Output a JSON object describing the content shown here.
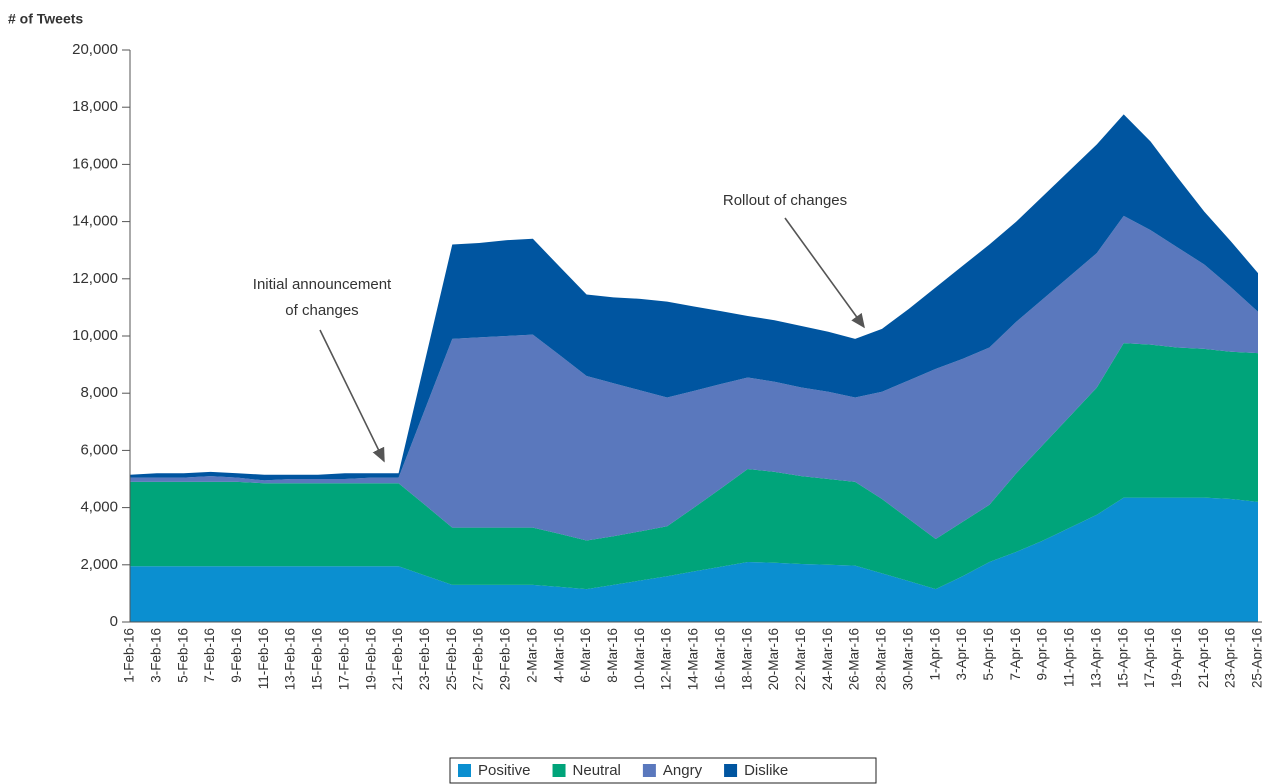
{
  "chart_data": {
    "type": "stacked_area",
    "y_label": "# of Tweets",
    "categories": [
      "1-Feb-16",
      "3-Feb-16",
      "5-Feb-16",
      "7-Feb-16",
      "9-Feb-16",
      "11-Feb-16",
      "13-Feb-16",
      "15-Feb-16",
      "17-Feb-16",
      "19-Feb-16",
      "21-Feb-16",
      "23-Feb-16",
      "25-Feb-16",
      "27-Feb-16",
      "29-Feb-16",
      "2-Mar-16",
      "4-Mar-16",
      "6-Mar-16",
      "8-Mar-16",
      "10-Mar-16",
      "12-Mar-16",
      "14-Mar-16",
      "16-Mar-16",
      "18-Mar-16",
      "20-Mar-16",
      "22-Mar-16",
      "24-Mar-16",
      "26-Mar-16",
      "28-Mar-16",
      "30-Mar-16",
      "1-Apr-16",
      "3-Apr-16",
      "5-Apr-16",
      "7-Apr-16",
      "9-Apr-16",
      "11-Apr-16",
      "13-Apr-16",
      "15-Apr-16",
      "17-Apr-16",
      "19-Apr-16",
      "21-Apr-16",
      "23-Apr-16",
      "25-Apr-16"
    ],
    "series": [
      {
        "name": "Positive",
        "color": "#0b8fd0",
        "values": [
          1950,
          1950,
          1950,
          1950,
          1950,
          1950,
          1950,
          1950,
          1950,
          1950,
          1950,
          1620,
          1300,
          1300,
          1300,
          1300,
          1230,
          1150,
          1300,
          1450,
          1600,
          1770,
          1930,
          2100,
          2070,
          2030,
          2000,
          1970,
          1700,
          1430,
          1150,
          1600,
          2100,
          2450,
          2850,
          3300,
          3750,
          4350,
          4350,
          4350,
          4350,
          4300,
          4200
        ]
      },
      {
        "name": "Neutral",
        "color": "#00a47a",
        "values": [
          2950,
          2950,
          2950,
          2950,
          2950,
          2900,
          2900,
          2900,
          2900,
          2900,
          2900,
          2460,
          2000,
          2000,
          2000,
          2000,
          1850,
          1700,
          1700,
          1720,
          1750,
          2230,
          2740,
          3250,
          3180,
          3070,
          3000,
          2930,
          2600,
          2170,
          1750,
          1900,
          2000,
          2750,
          3350,
          3900,
          4450,
          5400,
          5350,
          5250,
          5200,
          5150,
          5200
        ]
      },
      {
        "name": "Angry",
        "color": "#5a78bd",
        "values": [
          150,
          150,
          150,
          200,
          150,
          100,
          150,
          150,
          150,
          200,
          200,
          3400,
          6600,
          6650,
          6700,
          6750,
          6250,
          5750,
          5350,
          4930,
          4500,
          4080,
          3650,
          3200,
          3150,
          3100,
          3050,
          2950,
          3750,
          4850,
          5950,
          5700,
          5500,
          5300,
          5100,
          4900,
          4700,
          4450,
          4000,
          3500,
          2950,
          2250,
          1450
        ]
      },
      {
        "name": "Dislike",
        "color": "#0055a0",
        "values": [
          100,
          150,
          150,
          150,
          150,
          200,
          150,
          150,
          200,
          150,
          150,
          1720,
          3300,
          3300,
          3350,
          3350,
          3090,
          2850,
          3000,
          3200,
          3350,
          2950,
          2550,
          2150,
          2150,
          2150,
          2100,
          2050,
          2200,
          2500,
          2850,
          3250,
          3600,
          3500,
          3600,
          3700,
          3800,
          3550,
          3100,
          2450,
          1850,
          1600,
          1350
        ]
      }
    ],
    "ylim": [
      0,
      20000
    ],
    "yticks": [
      0,
      {
        "value": 2000,
        "label": "2,000"
      },
      {
        "value": 4000,
        "label": "4,000"
      },
      {
        "value": 6000,
        "label": "6,000"
      },
      {
        "value": 8000,
        "label": "8,000"
      },
      {
        "value": 10000,
        "label": "10,000"
      },
      {
        "value": 12000,
        "label": "12,000"
      },
      {
        "value": 14000,
        "label": "14,000"
      },
      {
        "value": 16000,
        "label": "16,000"
      },
      {
        "value": 18000,
        "label": "18,000"
      },
      {
        "value": 20000,
        "label": "20,000"
      }
    ],
    "annotations": [
      {
        "lines": [
          "Initial announcement",
          "of changes"
        ]
      },
      {
        "lines": [
          "Rollout of changes"
        ]
      }
    ],
    "legend": "bottom"
  }
}
